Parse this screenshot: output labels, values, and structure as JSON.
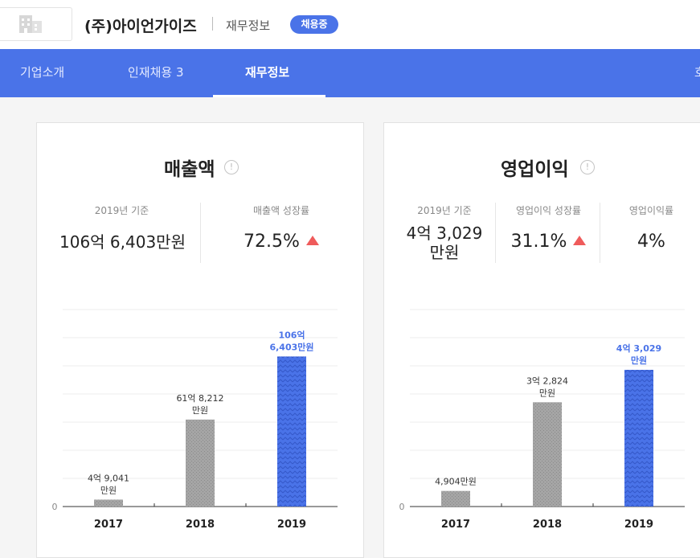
{
  "header": {
    "company_name": "(주)아이언가이즈",
    "breadcrumb": "재무정보",
    "badge": "채용중",
    "logo_icon": "building-icon"
  },
  "nav": {
    "tabs": [
      {
        "label": "기업소개"
      },
      {
        "label": "인재채용 3"
      },
      {
        "label": "재무정보",
        "active": true
      },
      {
        "label": "호"
      }
    ],
    "accent": "#4a73e8"
  },
  "cards": {
    "revenue": {
      "title": "매출액",
      "info_icon": "!",
      "stats": [
        {
          "label": "2019년 기준",
          "value": "106억 6,403만원"
        },
        {
          "label": "매출액 성장률",
          "value": "72.5%",
          "trend": "up"
        }
      ]
    },
    "operating": {
      "title": "영업이익",
      "info_icon": "!",
      "stats": [
        {
          "label": "2019년 기준",
          "value_line1": "4억 3,029",
          "value_line2": "만원"
        },
        {
          "label": "영업이익 성장률",
          "value": "31.1%",
          "trend": "up"
        },
        {
          "label": "영업이익률",
          "value": "4%"
        }
      ]
    }
  },
  "chart_data": [
    {
      "type": "bar",
      "title": "매출액",
      "categories": [
        "2017",
        "2018",
        "2019"
      ],
      "values": [
        4.9041,
        61.8212,
        106.6403
      ],
      "unit": "억원",
      "data_labels": [
        [
          "4억 9,041",
          "만원"
        ],
        [
          "61억 8,212",
          "만원"
        ],
        [
          "106억",
          "6,403만원"
        ]
      ],
      "ylim": [
        0,
        140
      ],
      "y_tick_labels": [
        "0"
      ],
      "grid": true,
      "highlight_last": true,
      "colors": {
        "past": "#a5a5a5",
        "current": "#4a73e8"
      }
    },
    {
      "type": "bar",
      "title": "영업이익",
      "categories": [
        "2017",
        "2018",
        "2019"
      ],
      "values": [
        0.4904,
        3.2824,
        4.3029
      ],
      "unit": "억원",
      "data_labels": [
        [
          "4,904만원"
        ],
        [
          "3억 2,824",
          "만원"
        ],
        [
          "4억 3,029",
          "만원"
        ]
      ],
      "ylim": [
        0,
        6.2
      ],
      "y_tick_labels": [
        "0"
      ],
      "grid": true,
      "highlight_last": true,
      "colors": {
        "past": "#a5a5a5",
        "current": "#4a73e8"
      }
    }
  ]
}
